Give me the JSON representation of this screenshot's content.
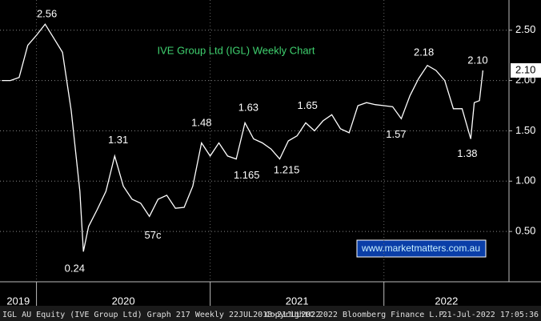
{
  "chart_data": {
    "type": "line",
    "title": "IVE Group Ltd (IGL) Weekly Chart",
    "color": "#ffffff",
    "x": [
      2019.8,
      2019.85,
      2019.9,
      2019.95,
      2020.0,
      2020.05,
      2020.1,
      2020.15,
      2020.2,
      2020.25,
      2020.27,
      2020.3,
      2020.35,
      2020.4,
      2020.45,
      2020.5,
      2020.55,
      2020.6,
      2020.65,
      2020.7,
      2020.75,
      2020.8,
      2020.85,
      2020.9,
      2020.95,
      2021.0,
      2021.05,
      2021.1,
      2021.15,
      2021.2,
      2021.25,
      2021.3,
      2021.35,
      2021.4,
      2021.45,
      2021.5,
      2021.55,
      2021.6,
      2021.65,
      2021.7,
      2021.75,
      2021.8,
      2021.85,
      2021.9,
      2021.95,
      2022.0,
      2022.05,
      2022.1,
      2022.15,
      2022.2,
      2022.25,
      2022.3,
      2022.35,
      2022.4,
      2022.45,
      2022.5,
      2022.52,
      2022.55,
      2022.57
    ],
    "values": [
      2.0,
      2.0,
      2.03,
      2.35,
      2.45,
      2.56,
      2.42,
      2.28,
      1.7,
      0.9,
      0.3,
      0.55,
      0.72,
      0.9,
      1.25,
      0.95,
      0.82,
      0.78,
      0.65,
      0.82,
      0.86,
      0.73,
      0.74,
      0.95,
      1.38,
      1.25,
      1.38,
      1.25,
      1.22,
      1.58,
      1.42,
      1.38,
      1.32,
      1.22,
      1.4,
      1.45,
      1.58,
      1.5,
      1.6,
      1.66,
      1.52,
      1.48,
      1.75,
      1.78,
      1.76,
      1.75,
      1.74,
      1.62,
      1.85,
      2.02,
      2.15,
      2.1,
      2.0,
      1.72,
      1.72,
      1.42,
      1.78,
      1.8,
      2.1
    ],
    "xlim": [
      2019.79,
      2022.72
    ],
    "xticks": [
      {
        "value": 2019,
        "label": "2019"
      },
      {
        "value": 2020,
        "label": "2020"
      },
      {
        "value": 2021,
        "label": "2021"
      },
      {
        "value": 2022,
        "label": "2022"
      }
    ],
    "ylim": [
      0,
      2.8
    ],
    "yticks": [
      {
        "value": 0.5,
        "label": "0.50"
      },
      {
        "value": 1.0,
        "label": "1.00"
      },
      {
        "value": 1.5,
        "label": "1.50"
      },
      {
        "value": 2.0,
        "label": "2.00"
      },
      {
        "value": 2.5,
        "label": "2.50"
      }
    ],
    "grid": true,
    "last_price": {
      "value": 2.1,
      "label": "2.10"
    },
    "annotations": [
      {
        "x": 2020.06,
        "value": 2.56,
        "label": "2.56"
      },
      {
        "x": 2020.22,
        "value": 0.24,
        "label": "0.24"
      },
      {
        "x": 2020.47,
        "value": 1.31,
        "label": "1.31"
      },
      {
        "x": 2020.67,
        "value": 0.57,
        "label": "57c"
      },
      {
        "x": 2020.95,
        "value": 1.48,
        "label": "1.48"
      },
      {
        "x": 2021.22,
        "value": 1.63,
        "label": "1.63"
      },
      {
        "x": 2021.21,
        "value": 1.165,
        "label": "1.165"
      },
      {
        "x": 2021.44,
        "value": 1.215,
        "label": "1.215"
      },
      {
        "x": 2021.56,
        "value": 1.65,
        "label": "1.65"
      },
      {
        "x": 2022.07,
        "value": 1.57,
        "label": "1.57"
      },
      {
        "x": 2022.23,
        "value": 2.18,
        "label": "2.18"
      },
      {
        "x": 2022.54,
        "value": 2.1,
        "label": "2.10"
      },
      {
        "x": 2022.48,
        "value": 1.38,
        "label": "1.38"
      }
    ],
    "watermark": "www.marketmatters.com.au"
  },
  "footer": {
    "left": "IGL AU Equity (IVE Group Ltd) Graph 217  Weekly 22JUL2018-21JUL2022",
    "center": "Copyright© 2022 Bloomberg Finance L.P.",
    "right": "21-Jul-2022 17:05:36"
  }
}
